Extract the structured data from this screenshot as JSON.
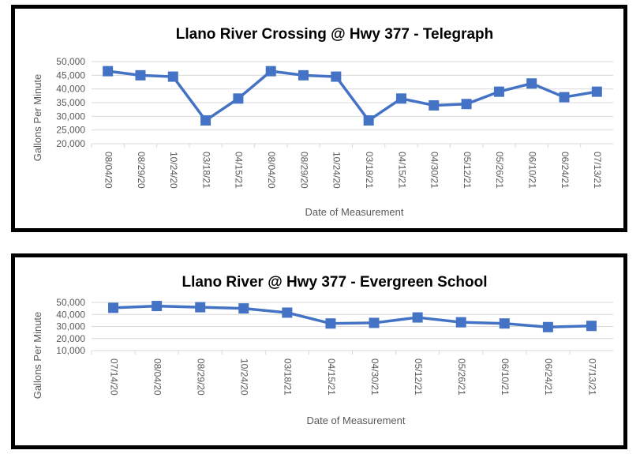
{
  "chart_data": [
    {
      "type": "line",
      "title": "Llano River Crossing @ Hwy 377 - Telegraph",
      "xlabel": "Date of Measurement",
      "ylabel": "Gallons Per Minute",
      "ylim": [
        20000,
        50000
      ],
      "yticks": [
        "50,000",
        "45,000",
        "40,000",
        "35,000",
        "30,000",
        "25,000",
        "20,000"
      ],
      "ytick_values": [
        50000,
        45000,
        40000,
        35000,
        30000,
        25000,
        20000
      ],
      "grid": true,
      "categories": [
        "08/04/20",
        "08/29/20",
        "10/24/20",
        "03/18/21",
        "04/15/21",
        "08/04/20",
        "08/29/20",
        "10/24/20",
        "03/18/21",
        "04/15/21",
        "04/30/21",
        "05/12/21",
        "05/26/21",
        "06/10/21",
        "06/24/21",
        "07/13/21"
      ],
      "series": [
        {
          "values": [
            46500,
            45000,
            44500,
            28500,
            36500,
            46500,
            45000,
            44500,
            28500,
            36500,
            34000,
            34500,
            39000,
            42000,
            37000,
            39000
          ]
        }
      ],
      "color": "#4472c4"
    },
    {
      "type": "line",
      "title": "Llano River @ Hwy 377 - Evergreen School",
      "xlabel": "Date of Measurement",
      "ylabel": "Gallons Per Minute",
      "ylim": [
        10000,
        50000
      ],
      "yticks": [
        "50,000",
        "40,000",
        "30,000",
        "20,000",
        "10,000"
      ],
      "ytick_values": [
        50000,
        40000,
        30000,
        20000,
        10000
      ],
      "grid": true,
      "categories": [
        "07/14/20",
        "08/04/20",
        "08/29/20",
        "10/24/20",
        "03/18/21",
        "04/15/21",
        "04/30/21",
        "05/12/21",
        "05/26/21",
        "06/10/21",
        "06/24/21",
        "07/13/21"
      ],
      "series": [
        {
          "values": [
            45500,
            47000,
            46000,
            45000,
            41500,
            32500,
            33000,
            37500,
            33500,
            32500,
            29500,
            30500
          ]
        }
      ],
      "color": "#4472c4"
    }
  ]
}
